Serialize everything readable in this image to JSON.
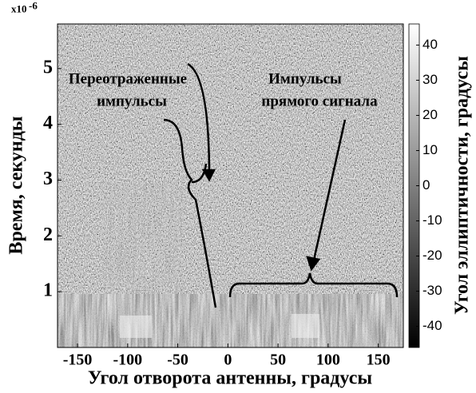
{
  "chart_data": {
    "type": "heatmap",
    "xlabel": "Угол отворота антенны, градусы",
    "ylabel": "Время, секунды",
    "y_offset_label": {
      "base": "x10",
      "exponent": "-6"
    },
    "xlim": [
      -170,
      175
    ],
    "xticks": [
      -150,
      -100,
      -50,
      0,
      50,
      100,
      150
    ],
    "ylim": [
      0,
      5.8
    ],
    "yticks": [
      1,
      2,
      3,
      4,
      5
    ],
    "colorbar": {
      "label": "Угол эллиптичности, градусы",
      "lim": [
        -46,
        46
      ],
      "ticks": [
        -40,
        -30,
        -20,
        -10,
        0,
        10,
        20,
        30,
        40
      ]
    },
    "annotations": [
      {
        "lines": [
          "Переотраженные",
          "импульсы"
        ]
      },
      {
        "lines": [
          "Импульсы",
          "прямого сигнала"
        ]
      }
    ]
  }
}
